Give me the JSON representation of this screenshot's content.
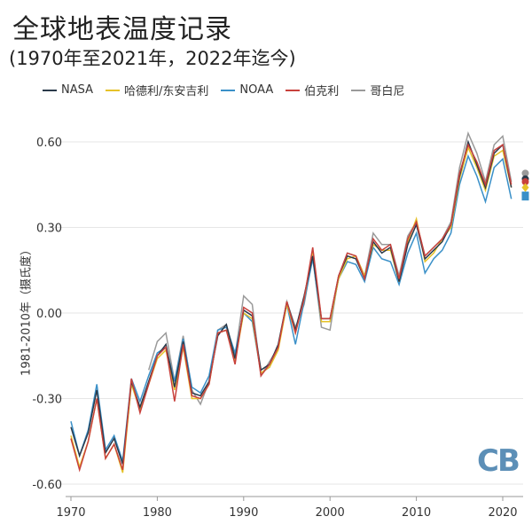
{
  "title": "全球地表温度记录",
  "subtitle": "(1970年至2021年，2022年迄今)",
  "logo": "CB",
  "chart_data": {
    "type": "line",
    "title": "全球地表温度记录",
    "subtitle": "(1970年至2021年，2022年迄今)",
    "ylabel": "1981-2010年（摄氏度）",
    "xlabel": "",
    "xlim": [
      1970,
      2022
    ],
    "ylim": [
      -0.6,
      0.6
    ],
    "xticks": [
      1970,
      1980,
      1990,
      2000,
      2010,
      2020
    ],
    "yticks": [
      "0.60",
      "0.30",
      "0.00",
      "-0.30",
      "-0.60"
    ],
    "ytick_values": [
      0.6,
      0.3,
      0,
      -0.3,
      -0.6
    ],
    "grid": "horizontal",
    "legend": "top",
    "x_start": 1970,
    "series": [
      {
        "name": "NASA",
        "color": "#2b3a4a",
        "values": [
          -0.4,
          -0.5,
          -0.42,
          -0.27,
          -0.49,
          -0.44,
          -0.53,
          -0.24,
          -0.33,
          -0.24,
          -0.15,
          -0.11,
          -0.26,
          -0.1,
          -0.28,
          -0.29,
          -0.24,
          -0.08,
          -0.04,
          -0.16,
          0.01,
          -0.01,
          -0.2,
          -0.18,
          -0.11,
          0.04,
          -0.06,
          0.06,
          0.2,
          -0.02,
          -0.02,
          0.13,
          0.2,
          0.19,
          0.12,
          0.25,
          0.21,
          0.23,
          0.11,
          0.24,
          0.31,
          0.19,
          0.22,
          0.25,
          0.31,
          0.48,
          0.6,
          0.52,
          0.44,
          0.56,
          0.59,
          0.44
        ],
        "ytd_2022": 0.47
      },
      {
        "name": "哈德利/东安吉利",
        "color": "#e6c229",
        "values": [
          -0.43,
          -0.54,
          -0.45,
          -0.3,
          -0.51,
          -0.46,
          -0.56,
          -0.25,
          -0.34,
          -0.25,
          -0.16,
          -0.13,
          -0.27,
          -0.12,
          -0.3,
          -0.3,
          -0.25,
          -0.07,
          -0.06,
          -0.17,
          0.0,
          -0.02,
          -0.21,
          -0.19,
          -0.13,
          0.03,
          -0.07,
          0.05,
          0.22,
          -0.03,
          -0.03,
          0.12,
          0.19,
          0.2,
          0.13,
          0.24,
          0.22,
          0.22,
          0.11,
          0.25,
          0.33,
          0.18,
          0.21,
          0.26,
          0.3,
          0.47,
          0.58,
          0.51,
          0.43,
          0.55,
          0.57,
          0.44
        ],
        "ytd_2022": 0.44
      },
      {
        "name": "NOAA",
        "color": "#3a90c8",
        "values": [
          -0.38,
          -0.5,
          -0.41,
          -0.25,
          -0.48,
          -0.43,
          -0.52,
          -0.23,
          -0.31,
          -0.22,
          -0.14,
          -0.12,
          -0.24,
          -0.09,
          -0.26,
          -0.28,
          -0.22,
          -0.06,
          -0.05,
          -0.14,
          0.0,
          -0.03,
          -0.21,
          -0.19,
          -0.12,
          0.03,
          -0.11,
          0.04,
          0.19,
          -0.03,
          -0.03,
          0.12,
          0.18,
          0.17,
          0.11,
          0.23,
          0.19,
          0.18,
          0.1,
          0.21,
          0.28,
          0.14,
          0.19,
          0.22,
          0.28,
          0.45,
          0.55,
          0.48,
          0.39,
          0.51,
          0.54,
          0.4
        ],
        "ytd_2022": 0.41
      },
      {
        "name": "伯克利",
        "color": "#c8413c",
        "values": [
          -0.44,
          -0.55,
          -0.45,
          -0.3,
          -0.51,
          -0.46,
          -0.55,
          -0.23,
          -0.35,
          -0.25,
          -0.15,
          -0.12,
          -0.31,
          -0.11,
          -0.29,
          -0.3,
          -0.25,
          -0.07,
          -0.06,
          -0.18,
          0.02,
          0.0,
          -0.22,
          -0.18,
          -0.12,
          0.04,
          -0.07,
          0.05,
          0.23,
          -0.02,
          -0.02,
          0.13,
          0.21,
          0.2,
          0.12,
          0.26,
          0.22,
          0.24,
          0.12,
          0.26,
          0.32,
          0.2,
          0.23,
          0.26,
          0.31,
          0.49,
          0.59,
          0.53,
          0.45,
          0.57,
          0.59,
          0.45
        ],
        "ytd_2022": 0.46
      },
      {
        "name": "哥白尼",
        "color": "#9a9a9a",
        "values": [
          null,
          null,
          null,
          null,
          null,
          null,
          null,
          null,
          null,
          -0.2,
          -0.1,
          -0.07,
          -0.24,
          -0.08,
          -0.27,
          -0.32,
          -0.24,
          -0.06,
          -0.04,
          -0.15,
          0.06,
          0.03,
          -0.22,
          -0.17,
          -0.12,
          0.04,
          -0.05,
          0.03,
          0.2,
          -0.05,
          -0.06,
          0.13,
          0.21,
          0.2,
          0.13,
          0.28,
          0.24,
          0.24,
          0.13,
          0.27,
          0.32,
          0.2,
          0.23,
          0.26,
          0.32,
          0.51,
          0.63,
          0.56,
          0.46,
          0.59,
          0.62,
          0.46
        ],
        "ytd_2022": 0.49
      }
    ]
  }
}
